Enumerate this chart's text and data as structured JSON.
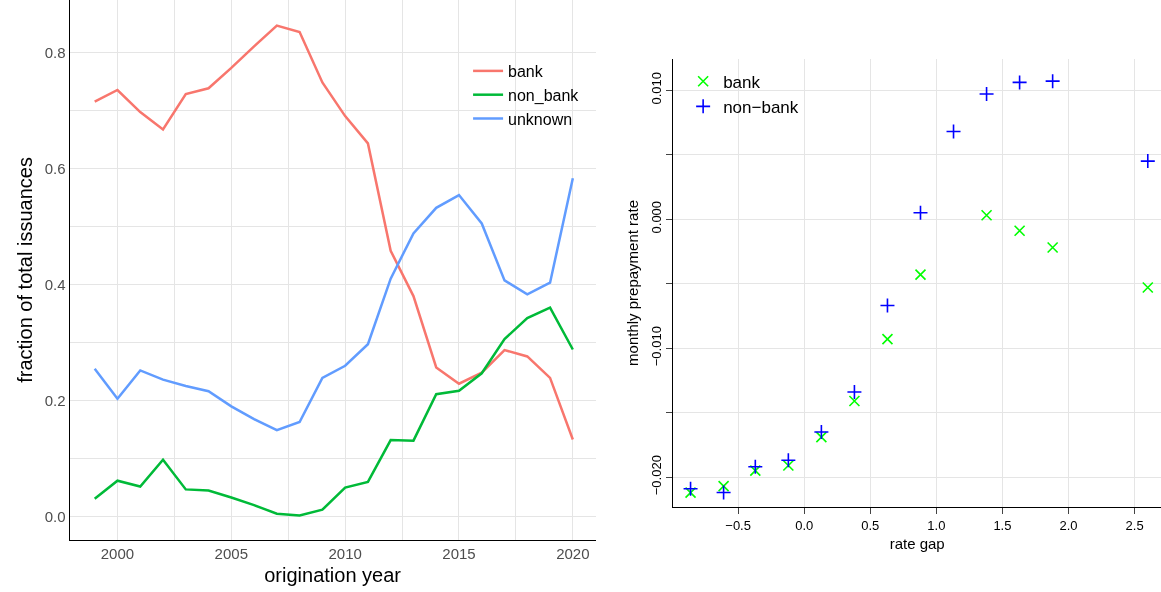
{
  "chart_data": [
    {
      "type": "line",
      "xlabel": "origination year",
      "ylabel": "fraction of total issuances",
      "x": [
        1999,
        2000,
        2001,
        2002,
        2003,
        2004,
        2005,
        2006,
        2007,
        2008,
        2009,
        2010,
        2011,
        2012,
        2013,
        2014,
        2015,
        2016,
        2017,
        2018,
        2019,
        2020
      ],
      "series": [
        {
          "name": "bank",
          "color": "#f8766d",
          "values": [
            0.715,
            0.735,
            0.697,
            0.667,
            0.728,
            0.738,
            0.773,
            0.81,
            0.846,
            0.835,
            0.748,
            0.69,
            0.643,
            0.458,
            0.38,
            0.257,
            0.229,
            0.248,
            0.287,
            0.276,
            0.239,
            0.133
          ]
        },
        {
          "name": "non_bank",
          "color": "#00ba38",
          "values": [
            0.031,
            0.062,
            0.052,
            0.098,
            0.047,
            0.045,
            0.033,
            0.02,
            0.005,
            0.002,
            0.012,
            0.05,
            0.06,
            0.132,
            0.131,
            0.211,
            0.217,
            0.247,
            0.306,
            0.342,
            0.36,
            0.288
          ]
        },
        {
          "name": "unknown",
          "color": "#619cff",
          "values": [
            0.255,
            0.203,
            0.252,
            0.236,
            0.225,
            0.216,
            0.19,
            0.168,
            0.149,
            0.163,
            0.239,
            0.26,
            0.297,
            0.41,
            0.488,
            0.532,
            0.554,
            0.505,
            0.407,
            0.383,
            0.403,
            0.583
          ]
        }
      ],
      "xlim": [
        1997.9,
        2021.0
      ],
      "ylim": [
        -0.04,
        0.89
      ],
      "xticks": [
        2000,
        {
          "value": 2002.5,
          "label": null
        },
        2005,
        {
          "value": 2007.5,
          "label": null
        },
        2010,
        {
          "value": 2012.5,
          "label": null
        },
        2015,
        {
          "value": 2017.5,
          "label": null
        },
        2020
      ],
      "yticks": [
        {
          "value": 0,
          "label": "0.0"
        },
        {
          "value": 0.1,
          "label": null
        },
        {
          "value": 0.2,
          "label": "0.2"
        },
        {
          "value": 0.3,
          "label": null
        },
        {
          "value": 0.4,
          "label": "0.4"
        },
        {
          "value": 0.5,
          "label": null
        },
        {
          "value": 0.6,
          "label": "0.6"
        },
        {
          "value": 0.7,
          "label": null
        },
        {
          "value": 0.8,
          "label": "0.8"
        }
      ],
      "grid": true,
      "legend": "top right",
      "line_style": "solid",
      "marker": "none"
    },
    {
      "type": "scatter",
      "xlabel": "rate gap",
      "ylabel": "monthly prepayment rate",
      "x": [
        -0.86,
        -0.61,
        -0.37,
        -0.12,
        0.13,
        0.38,
        0.63,
        0.88,
        1.13,
        1.38,
        1.63,
        1.88,
        2.6
      ],
      "series": [
        {
          "name": "bank",
          "color": "#00ff00",
          "marker": "x",
          "values": [
            -0.0212,
            -0.0207,
            -0.0195,
            -0.0191,
            -0.0169,
            -0.0141,
            -0.0093,
            -0.0043,
            null,
            0.0003,
            -0.0009,
            -0.0022,
            -0.0053
          ]
        },
        {
          "name": "non−bank",
          "color": "#0000ff",
          "marker": "cross",
          "values": [
            -0.0209,
            -0.0212,
            -0.0192,
            -0.0187,
            -0.0165,
            -0.0134,
            -0.0067,
            0.0005,
            0.0068,
            0.0097,
            0.0106,
            0.0107,
            0.0045
          ]
        }
      ],
      "xlim": [
        -0.99,
        2.7
      ],
      "ylim": [
        -0.0223,
        0.0124
      ],
      "xticks": [
        {
          "value": -0.5,
          "label": "−0.5"
        },
        {
          "value": 0,
          "label": "0.0"
        },
        {
          "value": 0.5,
          "label": "0.5"
        },
        {
          "value": 1,
          "label": "1.0"
        },
        {
          "value": 1.5,
          "label": "1.5"
        },
        {
          "value": 2,
          "label": "2.0"
        },
        {
          "value": 2.5,
          "label": "2.5"
        }
      ],
      "yticks": [
        {
          "value": -0.02,
          "label": "−0.020"
        },
        {
          "value": -0.015,
          "label": null
        },
        {
          "value": -0.01,
          "label": "−0.010"
        },
        {
          "value": -0.005,
          "label": null
        },
        {
          "value": 0,
          "label": "0.000"
        },
        {
          "value": 0.005,
          "label": null
        },
        {
          "value": 0.01,
          "label": "0.010"
        }
      ],
      "grid": true,
      "legend": "top left"
    }
  ]
}
